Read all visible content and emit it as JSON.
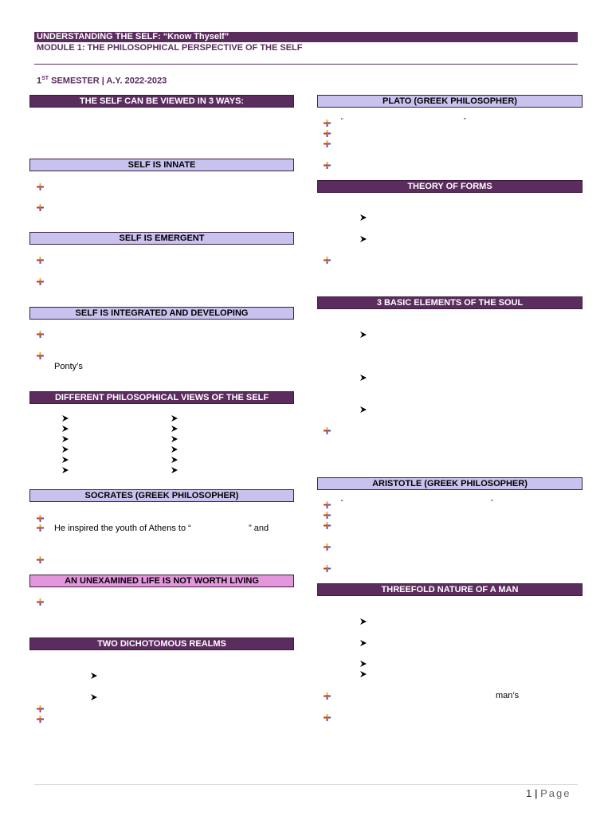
{
  "header": {
    "title": "UNDERSTANDING THE SELF: “Know Thyself”",
    "module": "MODULE 1: THE PHILOSOPHICAL PERSPECTIVE OF THE SELF",
    "semester_num": "1",
    "semester_sup": "ST",
    "semester_rest": " SEMESTER | A.Y. 2022-2023"
  },
  "left": {
    "ways": "THE SELF CAN BE VIEWED IN 3 WAYS:",
    "innate": "SELF IS INNATE",
    "emergent": "SELF IS EMERGENT",
    "integrated": "SELF IS INTEGRATED AND DEVELOPING",
    "pontys": "Ponty’s",
    "views": "DIFFERENT PHILOSOPHICAL VIEWS OF THE SELF",
    "socrates": "SOCRATES (GREEK PHILOSOPHER)",
    "inspired_a": "He inspired the youth of Athens to “",
    "inspired_b": "” and",
    "unexamined": "AN UNEXAMINED LIFE IS NOT WORTH LIVING",
    "realms": "TWO DICHOTOMOUS REALMS"
  },
  "right": {
    "plato": "PLATO (GREEK PHILOSOPHER)",
    "open_quote": "“",
    "close_quote": "”",
    "forms": "THEORY OF FORMS",
    "soul": "3 BASIC ELEMENTS OF THE SOUL",
    "aristotle": "ARISTOTLE (GREEK PHILOSOPHER)",
    "threefold": "THREEFOLD NATURE OF A MAN",
    "mans": "man’s"
  },
  "footer": {
    "page_number": "1",
    "separator": "|",
    "page_label": "Page"
  },
  "colors": {
    "dark_bar": "#5b2d5f",
    "light_bar": "#c8c3ee",
    "pink_bar": "#e496dc"
  },
  "icons": {
    "bullet": "four-color-cross-bullet-icon",
    "arrow": "arrowhead-bullet-icon"
  }
}
